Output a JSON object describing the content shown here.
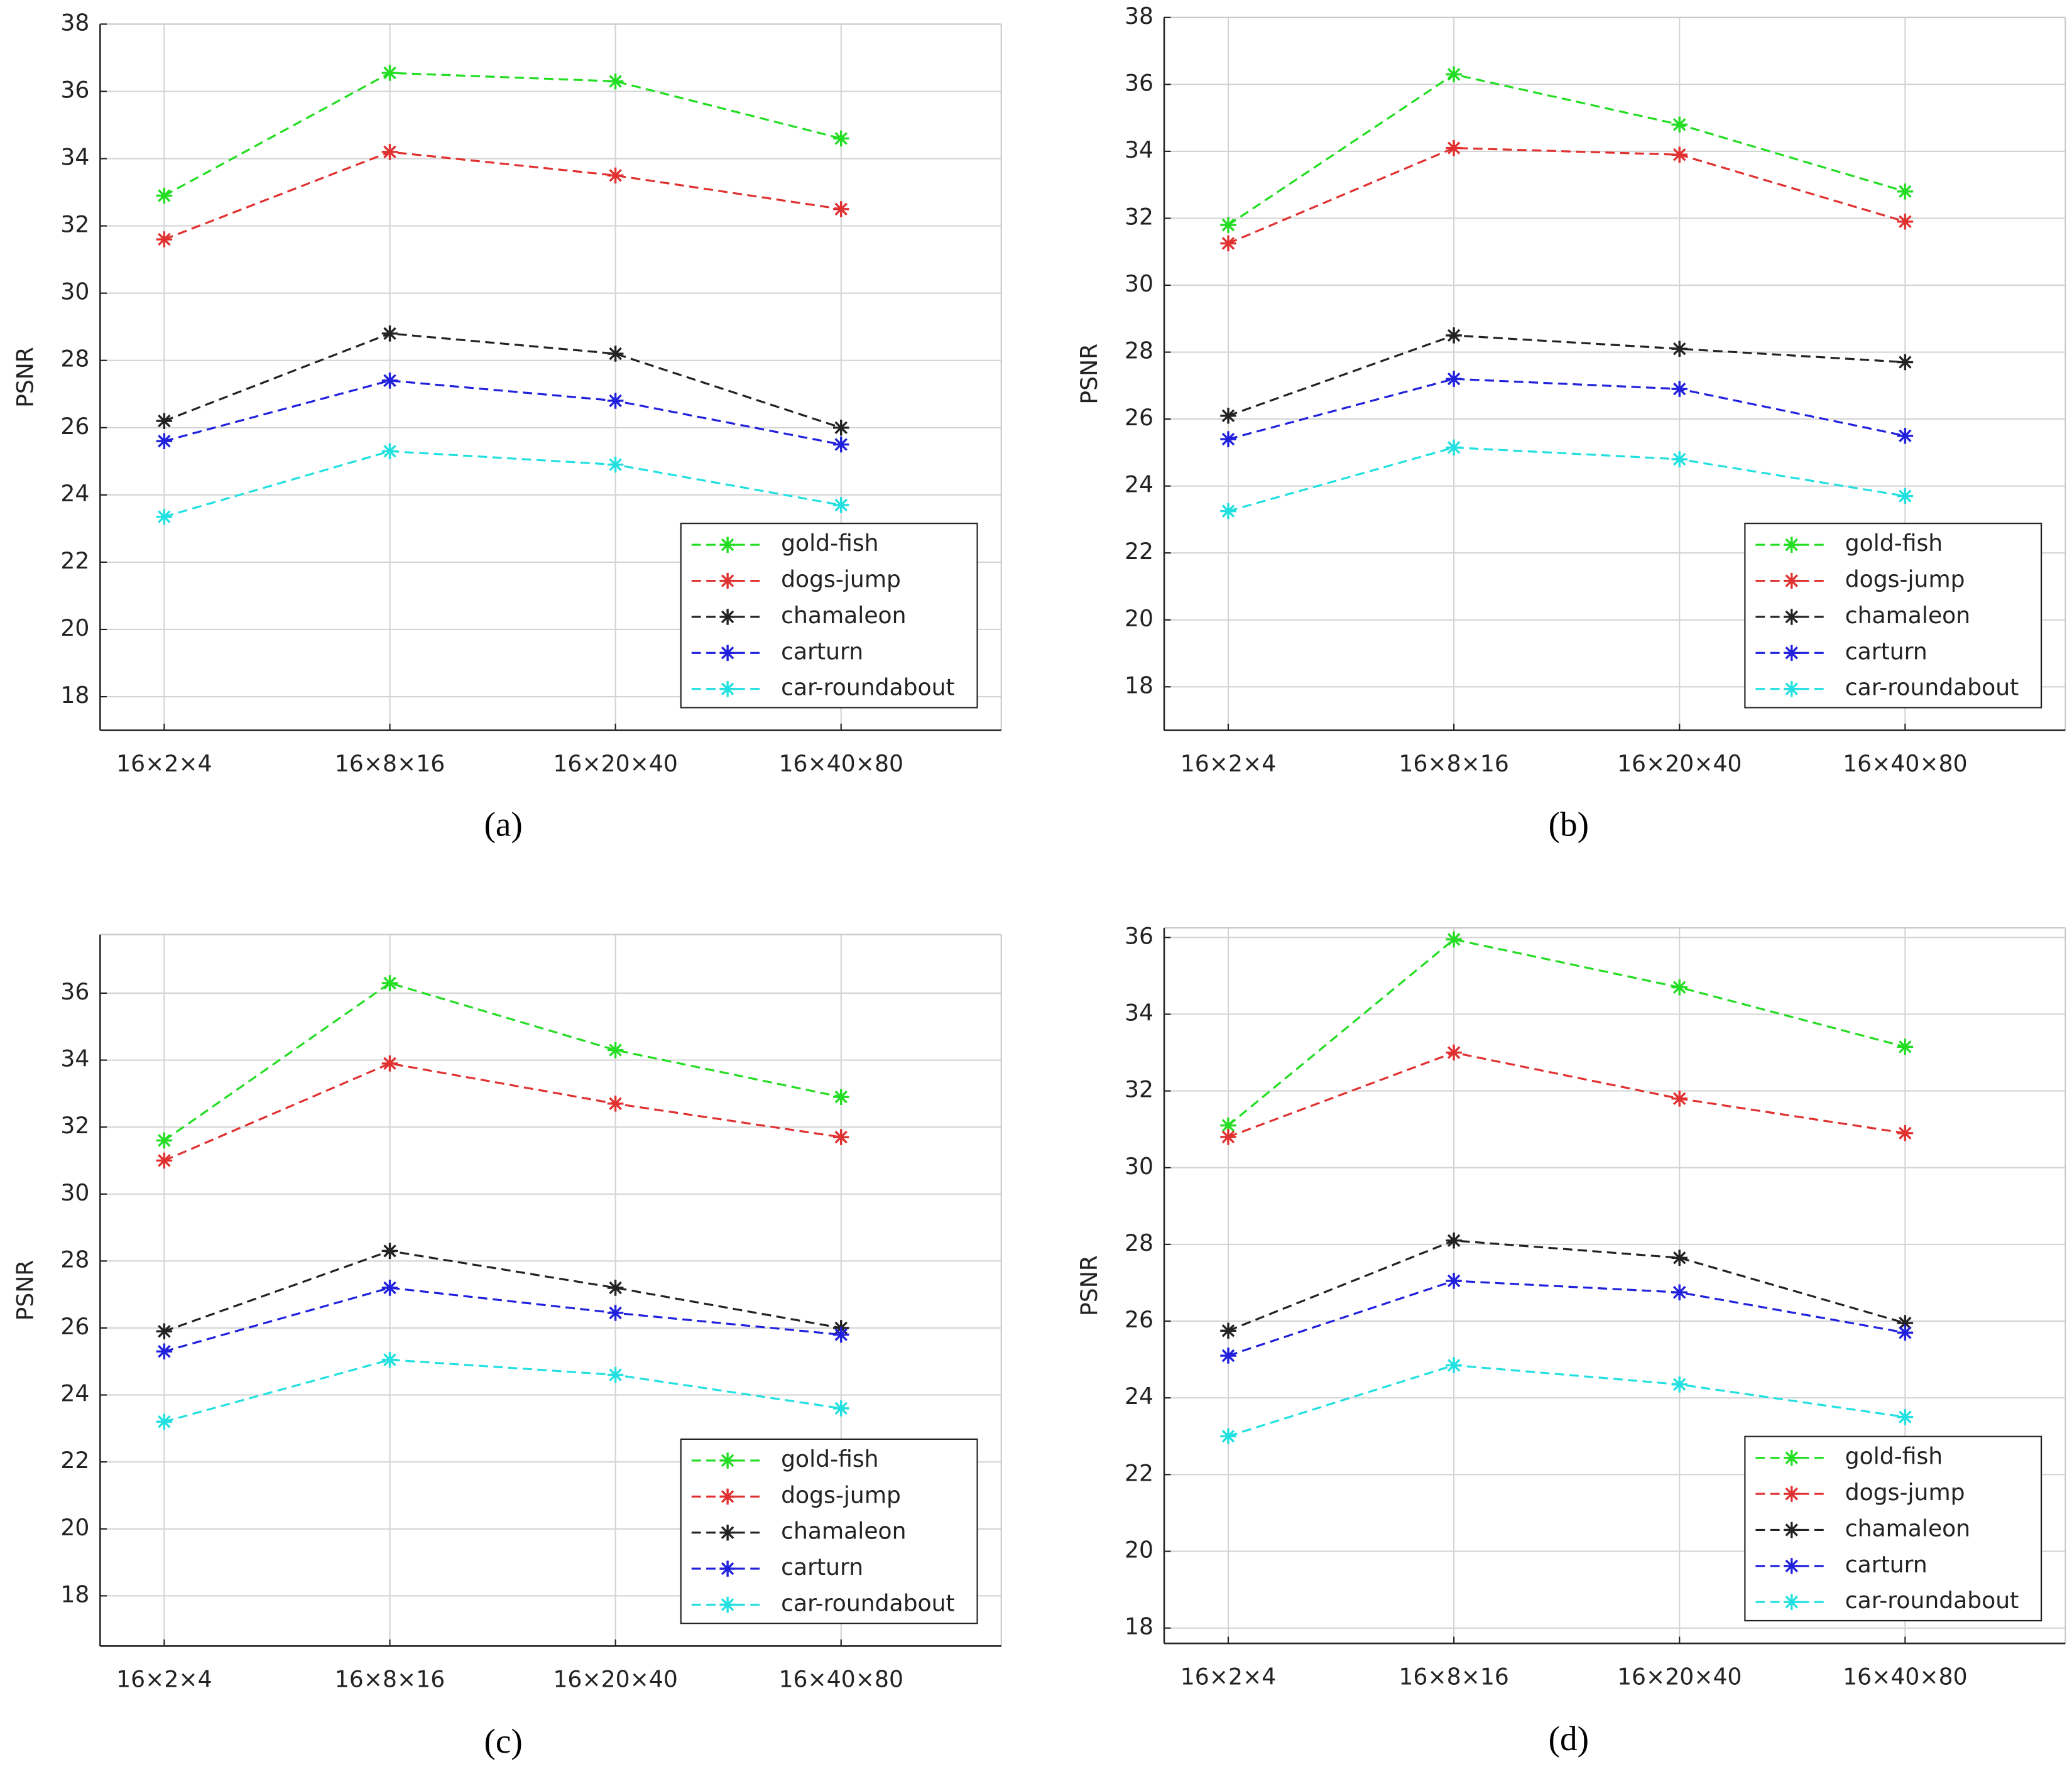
{
  "chart_data": [
    {
      "type": "line",
      "label": "(a)",
      "ylabel": "PSNR",
      "categories": [
        "16×2×4",
        "16×8×16",
        "16×20×40",
        "16×40×80"
      ],
      "series": [
        {
          "name": "gold-fish",
          "color": "#22dd22",
          "values": [
            32.9,
            36.55,
            36.3,
            34.6
          ]
        },
        {
          "name": "dogs-jump",
          "color": "#e03030",
          "values": [
            31.6,
            34.2,
            33.5,
            32.5
          ]
        },
        {
          "name": "chamaleon",
          "color": "#222222",
          "values": [
            26.2,
            28.8,
            28.2,
            26.0
          ]
        },
        {
          "name": "carturn",
          "color": "#2020dd",
          "values": [
            25.6,
            27.4,
            26.8,
            25.5
          ]
        },
        {
          "name": "car-roundabout",
          "color": "#22e0e0",
          "values": [
            23.35,
            25.3,
            24.9,
            23.7
          ]
        }
      ],
      "ylim": [
        17,
        38
      ],
      "yticks": [
        18,
        20,
        22,
        24,
        26,
        28,
        30,
        32,
        34,
        36,
        38
      ],
      "grid": true,
      "legend": "lower right"
    },
    {
      "type": "line",
      "label": "(b)",
      "ylabel": "PSNR",
      "categories": [
        "16×2×4",
        "16×8×16",
        "16×20×40",
        "16×40×80"
      ],
      "series": [
        {
          "name": "gold-fish",
          "color": "#22dd22",
          "values": [
            31.8,
            36.3,
            34.8,
            32.8
          ]
        },
        {
          "name": "dogs-jump",
          "color": "#e03030",
          "values": [
            31.25,
            34.1,
            33.9,
            31.9
          ]
        },
        {
          "name": "chamaleon",
          "color": "#222222",
          "values": [
            26.1,
            28.5,
            28.1,
            27.7
          ]
        },
        {
          "name": "carturn",
          "color": "#2020dd",
          "values": [
            25.4,
            27.2,
            26.9,
            25.5
          ]
        },
        {
          "name": "car-roundabout",
          "color": "#22e0e0",
          "values": [
            23.25,
            25.15,
            24.8,
            23.7
          ]
        }
      ],
      "ylim": [
        16.7,
        38
      ],
      "yticks": [
        18,
        20,
        22,
        24,
        26,
        28,
        30,
        32,
        34,
        36,
        38
      ],
      "grid": true,
      "legend": "lower right"
    },
    {
      "type": "line",
      "label": "(c)",
      "ylabel": "PSNR",
      "categories": [
        "16×2×4",
        "16×8×16",
        "16×20×40",
        "16×40×80"
      ],
      "series": [
        {
          "name": "gold-fish",
          "color": "#22dd22",
          "values": [
            31.6,
            36.3,
            34.3,
            32.9
          ]
        },
        {
          "name": "dogs-jump",
          "color": "#e03030",
          "values": [
            31.0,
            33.9,
            32.7,
            31.7
          ]
        },
        {
          "name": "chamaleon",
          "color": "#222222",
          "values": [
            25.9,
            28.3,
            27.2,
            26.0
          ]
        },
        {
          "name": "carturn",
          "color": "#2020dd",
          "values": [
            25.3,
            27.2,
            26.45,
            25.8
          ]
        },
        {
          "name": "car-roundabout",
          "color": "#22e0e0",
          "values": [
            23.2,
            25.05,
            24.6,
            23.6
          ]
        }
      ],
      "ylim": [
        16.5,
        37.75
      ],
      "yticks": [
        18,
        20,
        22,
        24,
        26,
        28,
        30,
        32,
        34,
        36
      ],
      "grid": true,
      "legend": "lower right"
    },
    {
      "type": "line",
      "label": "(d)",
      "ylabel": "PSNR",
      "categories": [
        "16×2×4",
        "16×8×16",
        "16×20×40",
        "16×40×80"
      ],
      "series": [
        {
          "name": "gold-fish",
          "color": "#22dd22",
          "values": [
            31.1,
            35.95,
            34.7,
            33.15
          ]
        },
        {
          "name": "dogs-jump",
          "color": "#e03030",
          "values": [
            30.8,
            33.0,
            31.8,
            30.9
          ]
        },
        {
          "name": "chamaleon",
          "color": "#222222",
          "values": [
            25.75,
            28.1,
            27.65,
            25.95
          ]
        },
        {
          "name": "carturn",
          "color": "#2020dd",
          "values": [
            25.1,
            27.05,
            26.75,
            25.7
          ]
        },
        {
          "name": "car-roundabout",
          "color": "#22e0e0",
          "values": [
            23.0,
            24.85,
            24.35,
            23.5
          ]
        }
      ],
      "ylim": [
        17.6,
        36.25
      ],
      "yticks": [
        18,
        20,
        22,
        24,
        26,
        28,
        30,
        32,
        34,
        36
      ],
      "grid": true,
      "legend": "lower right"
    }
  ]
}
